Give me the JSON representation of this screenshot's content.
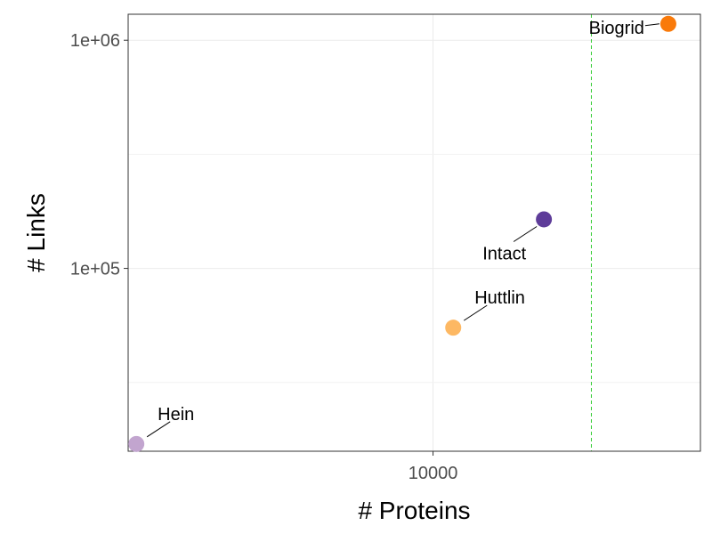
{
  "chart_data": {
    "type": "scatter",
    "title": "",
    "xlabel": "# Proteins",
    "ylabel": "# Links",
    "x_scale": "log10",
    "y_scale": "log10",
    "xlim": [
      3600,
      24500
    ],
    "ylim": [
      15800,
      1300000
    ],
    "x_ticks": [
      {
        "value": 10000,
        "label": "10000"
      }
    ],
    "y_ticks": [
      {
        "value": 100000,
        "label": "1e+05"
      },
      {
        "value": 1000000,
        "label": "1e+06"
      }
    ],
    "reference_line": {
      "axis": "x",
      "value": 17000,
      "color": "#33cc33",
      "style": "dashed"
    },
    "grid": true,
    "points": [
      {
        "label": "Hein",
        "x": 3700,
        "y": 17000,
        "color": "#c2a5cf",
        "label_side": "upper-right"
      },
      {
        "label": "Huttlin",
        "x": 10700,
        "y": 55000,
        "color": "#fdb863",
        "label_side": "upper-right"
      },
      {
        "label": "Intact",
        "x": 14500,
        "y": 164000,
        "color": "#5e3c99",
        "label_side": "lower-left"
      },
      {
        "label": "Biogrid",
        "x": 22000,
        "y": 1180000,
        "color": "#f97a0a",
        "label_side": "left"
      }
    ]
  }
}
